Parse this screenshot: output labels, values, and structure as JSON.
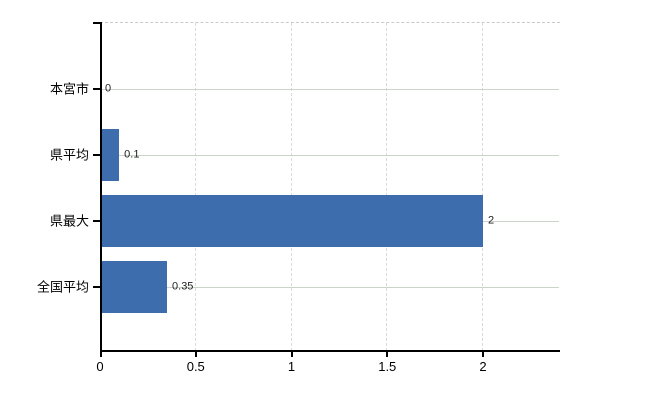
{
  "chart_data": {
    "type": "bar",
    "orientation": "horizontal",
    "title": "",
    "categories": [
      "本宮市",
      "県平均",
      "県最大",
      "全国平均"
    ],
    "values": [
      0,
      0.1,
      2,
      0.35
    ],
    "value_labels": [
      "0",
      "0.1",
      "2",
      "0.35"
    ],
    "x_ticks": [
      0,
      0.5,
      1,
      1.5,
      2
    ],
    "x_tick_labels": [
      "0",
      "0.5",
      "1",
      "1.5",
      "2"
    ],
    "xlim": [
      0,
      2.4
    ],
    "grid": true,
    "legend": false,
    "colors": {
      "bar": "#3d6dac",
      "axis": "#000000",
      "h_gridline": "#ccd3cb",
      "v_gridline": "#dadada",
      "top_border": "#c9c9c9",
      "background": "#ffffff",
      "text": "#000000"
    }
  }
}
